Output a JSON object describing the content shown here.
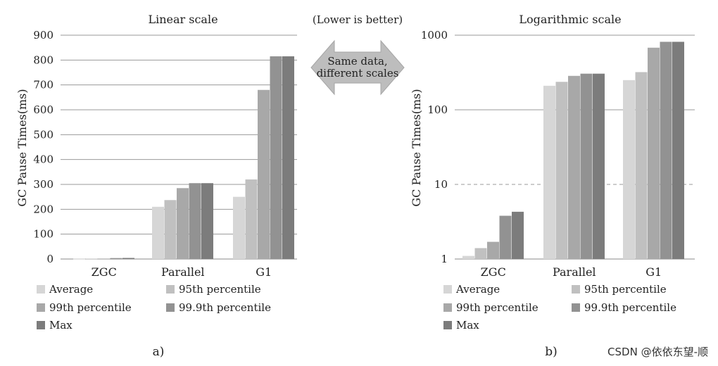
{
  "header": {
    "center_note": "(Lower is better)",
    "arrow_line1": "Same data,",
    "arrow_line2": "different scales"
  },
  "watermark": "CSDN @依依东望-顺",
  "chart_data": [
    {
      "type": "bar",
      "title": "Linear scale",
      "ylabel": "GC Pause Times(ms)",
      "scale": "linear",
      "ylim": [
        0,
        900
      ],
      "yticks": [
        "0",
        "100",
        "200",
        "300",
        "400",
        "500",
        "600",
        "700",
        "800",
        "900"
      ],
      "grid": true,
      "legend_position": "bottom",
      "categories": [
        "ZGC",
        "Parallel",
        "G1"
      ],
      "series": [
        {
          "name": "Average",
          "color": "#d6d6d6",
          "values": [
            1.1,
            210,
            250
          ]
        },
        {
          "name": "95th percentile",
          "color": "#c0c0c0",
          "values": [
            1.4,
            237,
            320
          ]
        },
        {
          "name": "99th percentile",
          "color": "#a8a8a8",
          "values": [
            1.7,
            285,
            680
          ]
        },
        {
          "name": "99.9th percentile",
          "color": "#929292",
          "values": [
            3.8,
            305,
            815
          ]
        },
        {
          "name": "Max",
          "color": "#7c7c7c",
          "values": [
            4.3,
            305,
            815
          ]
        }
      ],
      "caption": "a)"
    },
    {
      "type": "bar",
      "title": "Logarithmic scale",
      "ylabel": "GC Pause Times(ms)",
      "scale": "log",
      "ylim": [
        1,
        1000
      ],
      "yticks": [
        "1",
        "10",
        "100",
        "1000"
      ],
      "grid": true,
      "dashed_reference": 10,
      "legend_position": "bottom",
      "categories": [
        "ZGC",
        "Parallel",
        "G1"
      ],
      "series": [
        {
          "name": "Average",
          "color": "#d6d6d6",
          "values": [
            1.1,
            210,
            250
          ]
        },
        {
          "name": "95th percentile",
          "color": "#c0c0c0",
          "values": [
            1.4,
            237,
            320
          ]
        },
        {
          "name": "99th percentile",
          "color": "#a8a8a8",
          "values": [
            1.7,
            285,
            680
          ]
        },
        {
          "name": "99.9th percentile",
          "color": "#929292",
          "values": [
            3.8,
            305,
            815
          ]
        },
        {
          "name": "Max",
          "color": "#7c7c7c",
          "values": [
            4.3,
            305,
            815
          ]
        }
      ],
      "caption": "b)"
    }
  ]
}
